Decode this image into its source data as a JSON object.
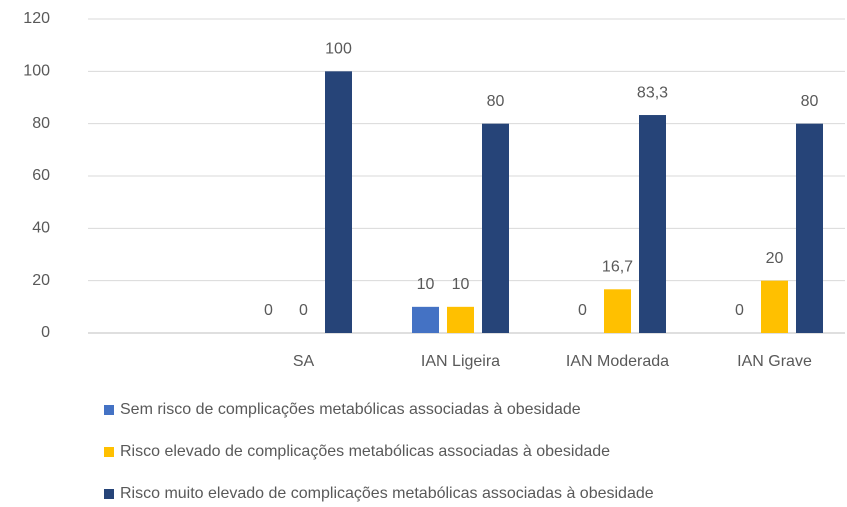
{
  "chart_data": {
    "type": "bar",
    "categories": [
      null,
      "SA",
      "IAN Ligeira",
      "IAN Moderada",
      "IAN Grave"
    ],
    "series": [
      {
        "name": "Sem risco de complicações metabólicas associadas à obesidade",
        "color": "#4472c4",
        "values": [
          null,
          0,
          10,
          0,
          0
        ]
      },
      {
        "name": "Risco elevado de complicações metabólicas associadas à obesidade",
        "color": "#ffc000",
        "values": [
          null,
          0,
          10,
          16.7,
          20
        ],
        "value_labels": [
          null,
          "0",
          "10",
          "16,7",
          "20"
        ]
      },
      {
        "name": "Risco muito elevado de complicações metabólicas associadas à obesidade",
        "color": "#264478",
        "values": [
          null,
          100,
          80,
          83.3,
          80
        ],
        "value_labels": [
          null,
          "100",
          "80",
          "83,3",
          "80"
        ]
      }
    ],
    "ylim": [
      0,
      120
    ],
    "yticks": [
      0,
      20,
      40,
      60,
      80,
      100,
      120
    ],
    "grid": true,
    "legend": "bottom"
  }
}
